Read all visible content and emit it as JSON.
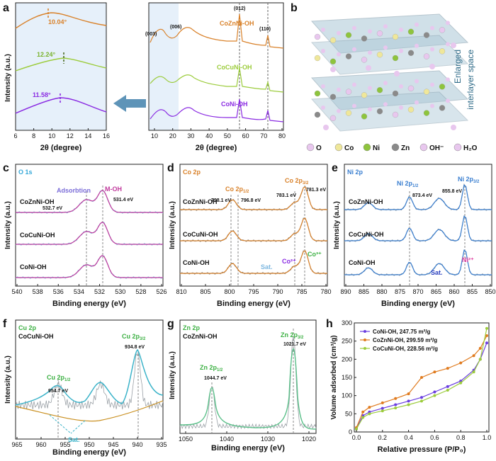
{
  "panels": {
    "a": {
      "label": "a",
      "left": {
        "ylabel": "Intensity (a.u.)",
        "xlabel": "2θ (degree)",
        "xticks": [
          "6",
          "8",
          "10",
          "12",
          "14",
          "16"
        ],
        "peaks": [
          {
            "text": "10.04°",
            "color": "#d9822b"
          },
          {
            "text": "12.24°",
            "color": "#7ab32e"
          },
          {
            "text": "11.58°",
            "color": "#8a2be2"
          }
        ]
      },
      "right": {
        "xlabel": "2θ (degree)",
        "xticks": [
          "10",
          "20",
          "30",
          "40",
          "50",
          "60",
          "70",
          "80"
        ],
        "planes": [
          "(003)",
          "(006)",
          "(012)",
          "(110)"
        ],
        "series": [
          {
            "name": "CoZnNi-OH",
            "color": "#d9822b"
          },
          {
            "name": "CoCuNi-OH",
            "color": "#9ccc3c"
          },
          {
            "name": "CoNi-OH",
            "color": "#8a2be2"
          }
        ]
      }
    },
    "b": {
      "label": "b",
      "caption_line1": "Enlarged",
      "caption_line2": "interlayer space",
      "legend": [
        {
          "sym": "O",
          "color": "#e8c7ee"
        },
        {
          "sym": "Co",
          "color": "#efe79a"
        },
        {
          "sym": "Ni",
          "color": "#8ec43d"
        },
        {
          "sym": "Zn",
          "color": "#8a8a8a"
        },
        {
          "sym": "OH⁻",
          "color": "#e8c7ee"
        },
        {
          "sym": "H₂O",
          "color": "#e8c7ee"
        }
      ]
    },
    "c": {
      "label": "c",
      "title": "O 1s",
      "ylabel": "Intensity (a.u.)",
      "xlabel": "Binding energy (eV)",
      "xticks": [
        "540",
        "538",
        "536",
        "534",
        "532",
        "530",
        "528",
        "526"
      ],
      "ann": {
        "adsorption": "Adsorbtion",
        "moh": "M-OH",
        "e1": "532.7 eV",
        "e2": "531.4 eV"
      },
      "series": [
        "CoZnNi-OH",
        "CoCuNi-OH",
        "CoNi-OH"
      ]
    },
    "d": {
      "label": "d",
      "title": "Co 2p",
      "ylabel": "Intensity (a.u.)",
      "xlabel": "Binding energy (eV)",
      "xticks": [
        "810",
        "805",
        "800",
        "795",
        "790",
        "785",
        "780"
      ],
      "ann": {
        "co2p12": "Co 2p",
        "co2p12_sub": "1/2",
        "co2p32": "Co 2p",
        "co2p32_sub": "3/2",
        "e1": "798.1 eV",
        "e2": "796.8 eV",
        "e3": "783.1 eV",
        "e4": "781.3 eV",
        "sat": "Sat.",
        "co2": "Co²⁺",
        "co3": "Co³⁺"
      },
      "series": [
        "CoZnNi-OH",
        "CoCuNi-OH",
        "CoNi-OH"
      ]
    },
    "e": {
      "label": "e",
      "title": "Ni 2p",
      "ylabel": "Intensity (a.u.)",
      "xlabel": "Binding energy (eV)",
      "xticks": [
        "890",
        "885",
        "880",
        "875",
        "870",
        "865",
        "860",
        "855",
        "850"
      ],
      "ann": {
        "ni12": "Ni 2p",
        "ni12_sub": "1/2",
        "ni32": "Ni 2p",
        "ni32_sub": "3/2",
        "e1": "873.4 eV",
        "e2": "855.8 eV",
        "sat": "Sat.",
        "ni2": "Ni²⁺"
      },
      "series": [
        "CoZnNi-OH",
        "CoCuNi-OH",
        "CoNi-OH"
      ]
    },
    "f": {
      "label": "f",
      "title": "Cu 2p",
      "sample": "CoCuNi-OH",
      "ylabel": "Intensity (a.u.)",
      "xlabel": "Binding energy (eV)",
      "xticks": [
        "965",
        "960",
        "955",
        "950",
        "945",
        "940",
        "935"
      ],
      "ann": {
        "cu12": "Cu 2p",
        "cu12_sub": "1/2",
        "cu32": "Cu 2p",
        "cu32_sub": "3/2",
        "e1": "954.7 eV",
        "e2": "934.8 eV",
        "sat": "Sat."
      }
    },
    "g": {
      "label": "g",
      "title": "Zn 2p",
      "sample": "CoZnNi-OH",
      "ylabel": "Intensity (a.u.)",
      "xlabel": "Binding energy (eV)",
      "xticks": [
        "1050",
        "1040",
        "1030",
        "1020"
      ],
      "ann": {
        "zn12": "Zn 2p",
        "zn12_sub": "1/2",
        "zn32": "Zn 2p",
        "zn32_sub": "3/2",
        "e1": "1044.7 eV",
        "e2": "1021.7 eV"
      }
    },
    "h": {
      "label": "h",
      "ylabel": "Volume adsorbed (cm³/g)",
      "xlabel": "Relative pressure (P/P₀)",
      "xticks": [
        "0.0",
        "0.2",
        "0.4",
        "0.6",
        "0.8",
        "1.0"
      ],
      "yticks": [
        "0",
        "50",
        "100",
        "150",
        "200",
        "250",
        "300"
      ],
      "legend": [
        {
          "name": "CoNi-OH, 247.75 m²/g",
          "color": "#6a3ee0"
        },
        {
          "name": "CoZnNi-OH, 299.59 m²/g",
          "color": "#e07b1f"
        },
        {
          "name": "CoCuNi-OH, 228.56 m²/g",
          "color": "#9ccc3c"
        }
      ]
    }
  },
  "chart_data": [
    {
      "type": "line",
      "panel": "h",
      "xlabel": "Relative pressure (P/P₀)",
      "ylabel": "Volume adsorbed (cm³/g)",
      "xlim": [
        0,
        1.0
      ],
      "ylim": [
        0,
        300
      ],
      "x": [
        0.0,
        0.05,
        0.1,
        0.2,
        0.3,
        0.4,
        0.5,
        0.6,
        0.7,
        0.8,
        0.9,
        0.95,
        1.0
      ],
      "series": [
        {
          "name": "CoNi-OH, 247.75 m²/g",
          "values": [
            10,
            45,
            55,
            65,
            75,
            85,
            95,
            110,
            125,
            140,
            170,
            200,
            245
          ]
        },
        {
          "name": "CoZnNi-OH, 299.59 m²/g",
          "values": [
            12,
            55,
            68,
            80,
            92,
            105,
            150,
            165,
            175,
            190,
            210,
            230,
            265
          ]
        },
        {
          "name": "CoCuNi-OH, 228.56 m²/g",
          "values": [
            8,
            40,
            50,
            58,
            66,
            75,
            85,
            100,
            115,
            135,
            165,
            200,
            285
          ]
        }
      ]
    }
  ]
}
